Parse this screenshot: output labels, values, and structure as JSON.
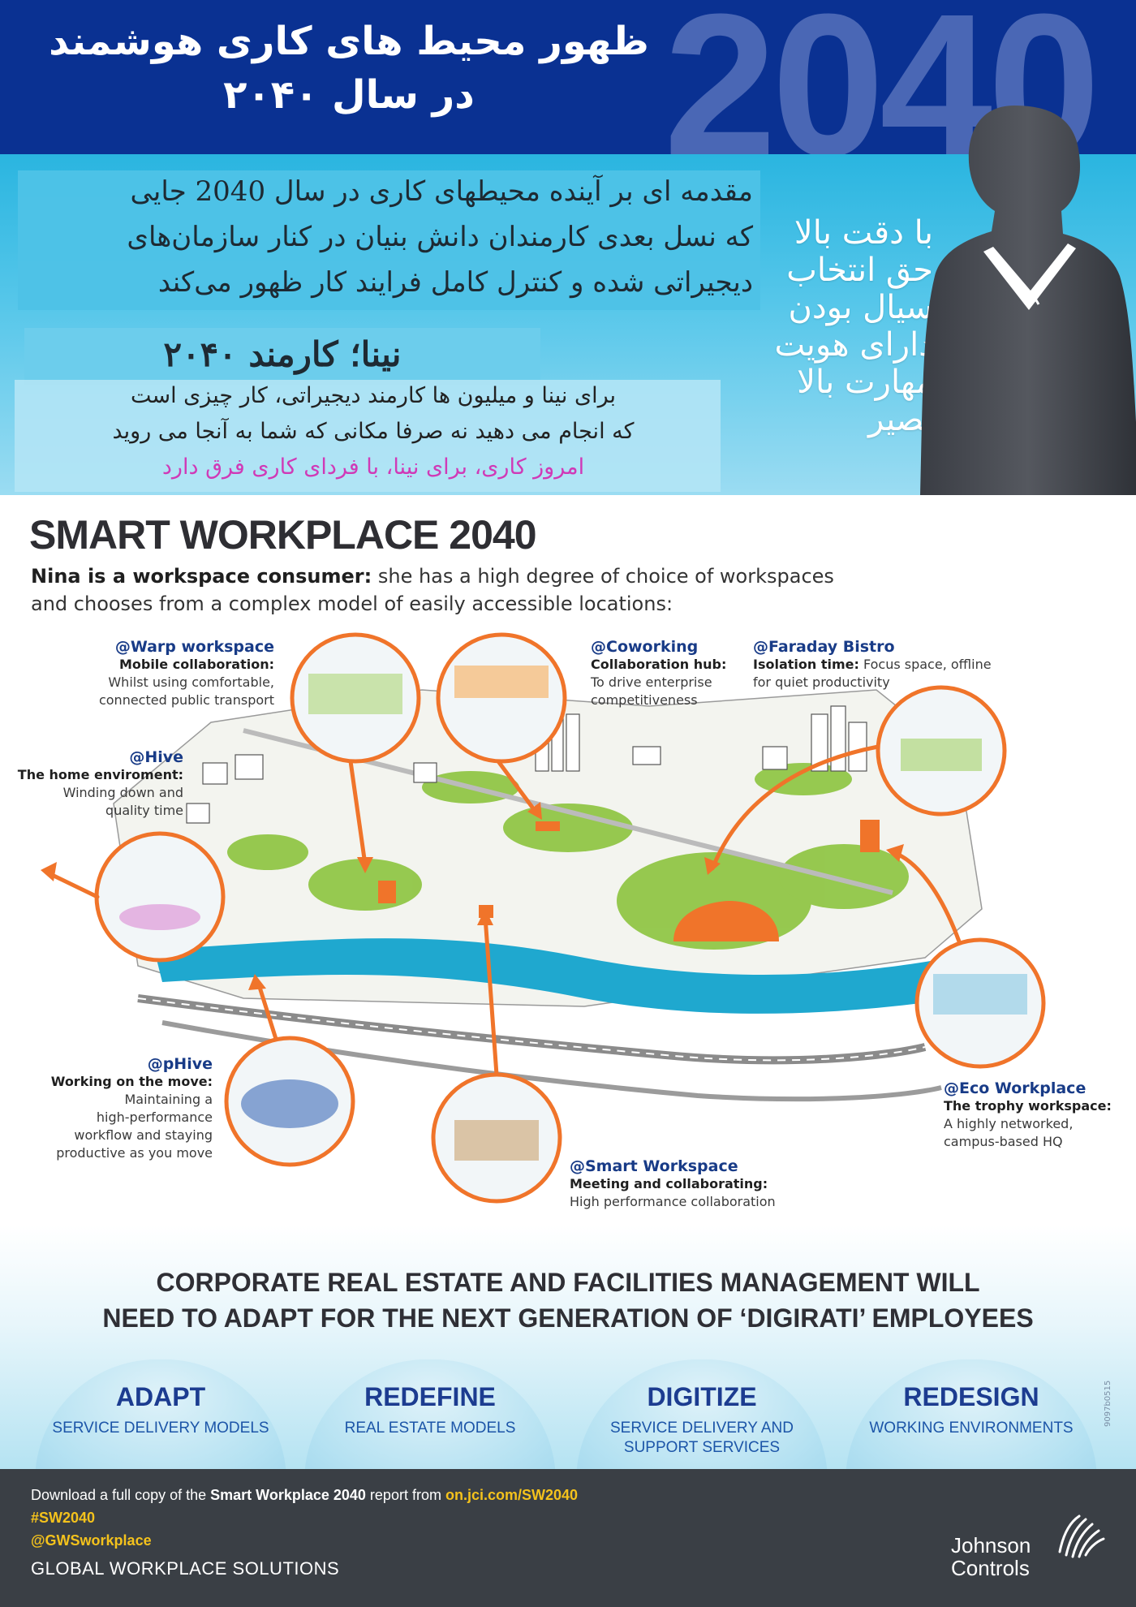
{
  "header": {
    "title_line1": "ظهور محیط های کاری هوشمند",
    "title_line2": "در سال ۲۰۴۰",
    "year": "2040"
  },
  "intro": {
    "lines": [
      "مقدمه ای بر آینده محیطهای کاری در سال 2040 جایی",
      "که نسل بعدی کارمندان دانش بنیان در کنار سازمان‌های",
      "دیجیراتی شده و کنترل کامل فرایند کار ظهور می‌کند"
    ],
    "nina_title": "نینا؛ کارمند ۲۰۴۰",
    "para_lines": [
      "برای نینا و میلیون ها کارمند دیجیراتی، کار چیزی است",
      "که انجام می دهید نه صرفا مکانی که شما به آنجا می روید"
    ],
    "para_pink": "امروز کاری، برای نینا، با فردای کاری فرق دارد",
    "side_list": [
      "با دقت بالا",
      "حق انتخاب",
      "سیال بودن",
      "دارای هویت",
      "مهارت بالا",
      "بصیر"
    ]
  },
  "smart": {
    "title": "SMART WORKPLACE 2040",
    "sub_bold": "Nina is a workspace consumer:",
    "sub_rest": " she has a high degree of choice of workspaces",
    "sub_line2": "and chooses from a complex model of easily accessible locations:"
  },
  "locations": {
    "warp": {
      "title": "@Warp workspace",
      "bold": "Mobile collaboration:",
      "text1": "Whilst using comfortable,",
      "text2": "connected public transport"
    },
    "coworking": {
      "title": "@Coworking",
      "bold": "Collaboration hub:",
      "text1": "To drive enterprise",
      "text2": "competitiveness"
    },
    "faraday": {
      "title": "@Faraday Bistro",
      "bold": "Isolation time:",
      "text1": " Focus space, offline",
      "text2": "for quiet productivity"
    },
    "hive": {
      "title": "@Hive",
      "bold": "The home enviroment:",
      "text1": "Winding down and",
      "text2": "quality time"
    },
    "phive": {
      "title": "@pHive",
      "bold": "Working on the move:",
      "text1": "Maintaining a",
      "text2": "high-performance",
      "text3": "workflow and staying",
      "text4": "productive as you move"
    },
    "smartws": {
      "title": "@Smart Workspace",
      "bold": "Meeting and collaborating:",
      "text1": "High performance collaboration"
    },
    "eco": {
      "title": "@Eco Workplace",
      "bold": "The trophy workspace:",
      "text1": "A highly networked,",
      "text2": "campus-based HQ"
    }
  },
  "corporate": {
    "line1": "CORPORATE REAL ESTATE AND FACILITIES MANAGEMENT WILL",
    "line2": "NEED TO ADAPT FOR THE NEXT GENERATION OF ‘DIGIRATI’ EMPLOYEES",
    "pillars": [
      {
        "head": "ADAPT",
        "sub1": "SERVICE DELIVERY MODELS",
        "sub2": ""
      },
      {
        "head": "REDEFINE",
        "sub1": "REAL ESTATE MODELS",
        "sub2": ""
      },
      {
        "head": "DIGITIZE",
        "sub1": "SERVICE DELIVERY AND",
        "sub2": "SUPPORT SERVICES"
      },
      {
        "head": "REDESIGN",
        "sub1": "WORKING ENVIRONMENTS",
        "sub2": ""
      }
    ],
    "code": "9097b0515"
  },
  "footer": {
    "download_pre": "Download a full copy of the ",
    "download_bold": "Smart Workplace 2040",
    "download_mid": " report from ",
    "download_link": "on.jci.com/SW2040",
    "hashtag": "#SW2040",
    "handle": "@GWSworkplace",
    "gws": "GLOBAL WORKPLACE SOLUTIONS",
    "brand_line1": "Johnson",
    "brand_line2": "Controls"
  },
  "colors": {
    "header_bg": "#0a3192",
    "accent_orange": "#f0742a",
    "title_blue": "#183b87",
    "pink": "#d03ab7",
    "footer_bg": "#3a3f45",
    "footer_yellow": "#f4c21c"
  }
}
